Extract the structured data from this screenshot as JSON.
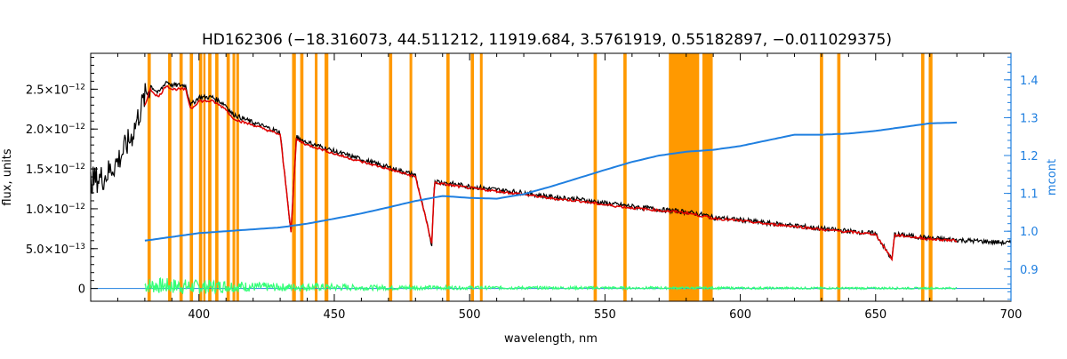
{
  "chart_data": {
    "type": "line",
    "title": "HD162306    (−18.316073, 44.511212, 11919.684, 3.5761919, 0.55182897, −0.011029375)",
    "xlabel": "wavelength, nm",
    "ylabel": "flux, units",
    "ylabel_right": "mcont",
    "xlim": [
      360,
      700
    ],
    "ylim": [
      -1.6e-13,
      2.95e-12
    ],
    "ylim_right": [
      0.815,
      1.47
    ],
    "x_ticks": [
      400,
      450,
      500,
      550,
      600,
      650,
      700
    ],
    "x_tick_labels": [
      "400",
      "450",
      "500",
      "550",
      "600",
      "650",
      "700"
    ],
    "y_ticks": [
      0,
      5e-13,
      1e-12,
      1.5e-12,
      2e-12,
      2.5e-12
    ],
    "y_tick_labels": [
      {
        "mant": "0",
        "exp": ""
      },
      {
        "mant": "5.0×10",
        "exp": "−13"
      },
      {
        "mant": "1.0×10",
        "exp": "−12"
      },
      {
        "mant": "1.5×10",
        "exp": "−12"
      },
      {
        "mant": "2.0×10",
        "exp": "−12"
      },
      {
        "mant": "2.5×10",
        "exp": "−12"
      }
    ],
    "y_right_ticks": [
      0.9,
      1.0,
      1.1,
      1.2,
      1.3,
      1.4
    ],
    "y_right_tick_labels": [
      "0.9",
      "1.0",
      "1.1",
      "1.2",
      "1.3",
      "1.4"
    ],
    "colors": {
      "observed": "#000000",
      "model": "#e00000",
      "model_highlight": "#ffd000",
      "residual": "#33ff77",
      "continuum": "#1f7fe0",
      "masks": "#ff9900",
      "axes": "#000000"
    },
    "masked_regions": [
      [
        381.0,
        382.2
      ],
      [
        388.6,
        389.8
      ],
      [
        392.8,
        394.0
      ],
      [
        396.6,
        397.8
      ],
      [
        400.0,
        401.2
      ],
      [
        401.6,
        402.4
      ],
      [
        403.4,
        404.6
      ],
      [
        406.0,
        407.2
      ],
      [
        410.2,
        411.4
      ],
      [
        412.4,
        413.4
      ],
      [
        413.8,
        414.8
      ],
      [
        434.4,
        435.8
      ],
      [
        437.4,
        438.6
      ],
      [
        442.8,
        443.8
      ],
      [
        446.4,
        447.8
      ],
      [
        470.2,
        471.4
      ],
      [
        477.8,
        478.8
      ],
      [
        491.4,
        492.6
      ],
      [
        500.4,
        501.6
      ],
      [
        503.8,
        504.8
      ],
      [
        545.8,
        547.0
      ],
      [
        556.8,
        558.0
      ],
      [
        573.6,
        584.8
      ],
      [
        586.0,
        589.8
      ],
      [
        629.4,
        630.6
      ],
      [
        635.8,
        637.0
      ],
      [
        666.8,
        668.0
      ],
      [
        669.6,
        671.0
      ]
    ],
    "series": [
      {
        "name": "observed",
        "x": [
          360,
          365,
          370,
          375,
          380,
          382,
          385,
          388,
          390,
          395,
          397,
          400,
          405,
          410,
          412,
          415,
          420,
          425,
          430,
          434,
          436,
          440,
          445,
          450,
          460,
          470,
          480,
          486,
          487,
          490,
          500,
          510,
          520,
          530,
          540,
          550,
          560,
          570,
          580,
          587,
          590,
          600,
          610,
          620,
          630,
          640,
          650,
          656,
          657,
          660,
          670,
          680,
          690,
          700
        ],
        "y": [
          1.35e-12,
          1.4e-12,
          1.6e-12,
          1.9e-12,
          2.4e-12,
          2.55e-12,
          2.45e-12,
          2.6e-12,
          2.55e-12,
          2.55e-12,
          2.3e-12,
          2.4e-12,
          2.4e-12,
          2.3e-12,
          2.2e-12,
          2.15e-12,
          2.08e-12,
          2.02e-12,
          1.96e-12,
          7e-13,
          1.9e-12,
          1.83e-12,
          1.78e-12,
          1.72e-12,
          1.62e-12,
          1.52e-12,
          1.42e-12,
          5.5e-13,
          1.35e-12,
          1.33e-12,
          1.28e-12,
          1.24e-12,
          1.2e-12,
          1.15e-12,
          1.12e-12,
          1.07e-12,
          1.03e-12,
          9.9e-13,
          9.6e-13,
          9.2e-13,
          8.9e-13,
          8.6e-13,
          8.2e-13,
          7.9e-13,
          7.5e-13,
          7.2e-13,
          6.9e-13,
          3.6e-13,
          6.8e-13,
          6.7e-13,
          6.3e-13,
          6.1e-13,
          5.9e-13,
          5.7e-13
        ]
      },
      {
        "name": "model",
        "x": [
          380,
          382,
          385,
          388,
          390,
          395,
          397,
          400,
          405,
          410,
          412,
          415,
          420,
          425,
          430,
          434,
          436,
          440,
          445,
          450,
          460,
          470,
          480,
          486,
          487,
          490,
          500,
          510,
          520,
          530,
          540,
          550,
          560,
          570,
          580,
          590,
          600,
          610,
          620,
          630,
          640,
          650,
          656,
          657,
          660,
          670,
          680
        ],
        "y": [
          2.3e-12,
          2.5e-12,
          2.4e-12,
          2.55e-12,
          2.5e-12,
          2.5e-12,
          2.25e-12,
          2.35e-12,
          2.35e-12,
          2.25e-12,
          2.15e-12,
          2.1e-12,
          2.05e-12,
          1.99e-12,
          1.93e-12,
          7.2e-13,
          1.87e-12,
          1.8e-12,
          1.75e-12,
          1.69e-12,
          1.59e-12,
          1.5e-12,
          1.4e-12,
          5.7e-13,
          1.33e-12,
          1.31e-12,
          1.26e-12,
          1.22e-12,
          1.18e-12,
          1.13e-12,
          1.1e-12,
          1.05e-12,
          1.01e-12,
          9.8e-13,
          9.5e-13,
          8.8e-13,
          8.5e-13,
          8.1e-13,
          7.8e-13,
          7.4e-13,
          7.1e-13,
          6.8e-13,
          3.7e-13,
          6.7e-13,
          6.6e-13,
          6.2e-13,
          6e-13
        ]
      },
      {
        "name": "residual",
        "x": [
          380,
          390,
          400,
          410,
          420,
          430,
          440,
          450,
          460,
          470,
          480,
          490,
          500,
          510,
          520,
          530,
          540,
          550,
          560,
          570,
          573,
          585,
          590,
          600,
          610,
          620,
          630,
          640,
          650,
          660,
          670,
          680
        ],
        "y": [
          4e-14,
          3e-14,
          2e-14,
          3e-14,
          2e-14,
          1.5e-14,
          2e-14,
          1.5e-14,
          1e-14,
          1e-14,
          1e-14,
          1e-14,
          1e-14,
          1e-14,
          8e-15,
          8e-15,
          8e-15,
          8e-15,
          7e-15,
          7e-15,
          6e-15,
          6e-15,
          6e-15,
          5e-15,
          5e-15,
          5e-15,
          4e-15,
          4e-15,
          4e-15,
          4e-15,
          4e-15,
          4e-15
        ],
        "noise_amplitude": [
          1e-13,
          1e-13,
          9e-14,
          8e-14,
          6e-14,
          5e-14,
          5e-14,
          4.5e-14,
          3.5e-14,
          3e-14,
          2.8e-14,
          2.5e-14,
          2.2e-14,
          2e-14,
          2e-14,
          1.8e-14,
          1.8e-14,
          1.7e-14,
          1.6e-14,
          1.5e-14,
          1.5e-14,
          1.5e-14,
          1.4e-14,
          1.4e-14,
          1.4e-14,
          1.3e-14,
          1.3e-14,
          1.3e-14,
          1.3e-14,
          1.3e-14,
          1.2e-14,
          1.2e-14
        ]
      },
      {
        "name": "continuum",
        "axis": "right",
        "x": [
          380,
          390,
          400,
          410,
          420,
          430,
          440,
          450,
          460,
          470,
          480,
          490,
          500,
          510,
          520,
          530,
          540,
          550,
          560,
          570,
          580,
          590,
          600,
          610,
          620,
          630,
          640,
          650,
          660,
          670,
          680
        ],
        "y": [
          0.975,
          0.985,
          0.995,
          1.0,
          1.005,
          1.01,
          1.02,
          1.033,
          1.047,
          1.063,
          1.08,
          1.093,
          1.088,
          1.086,
          1.098,
          1.118,
          1.14,
          1.162,
          1.183,
          1.2,
          1.21,
          1.215,
          1.225,
          1.24,
          1.255,
          1.255,
          1.258,
          1.265,
          1.275,
          1.285,
          1.287
        ]
      }
    ],
    "baseline_value": 0
  }
}
